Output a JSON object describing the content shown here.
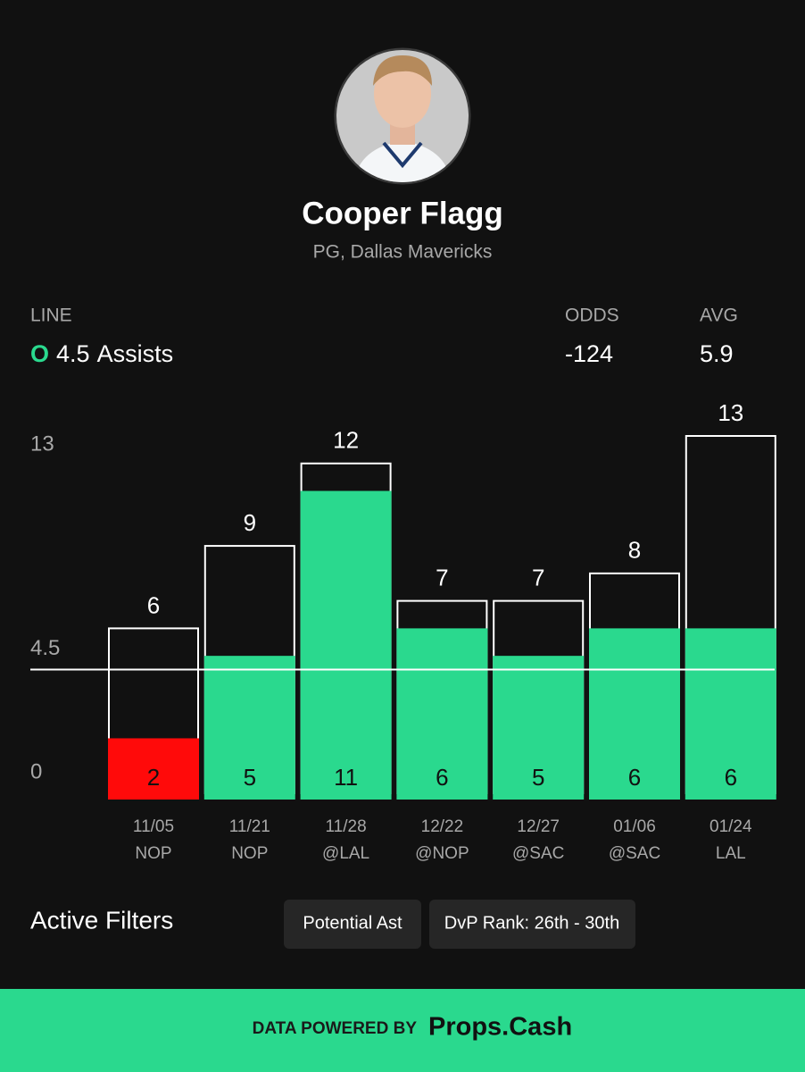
{
  "player": {
    "name": "Cooper Flagg",
    "subtitle": "PG, Dallas Mavericks"
  },
  "stats": {
    "line_label": "LINE",
    "side": "O",
    "line": 4.5,
    "stat": "Assists",
    "odds_label": "ODDS",
    "odds": -124,
    "avg_label": "AVG",
    "avg": 5.9
  },
  "chart_data": {
    "type": "bar",
    "categories": [
      "11/05",
      "11/21",
      "11/28",
      "12/22",
      "12/27",
      "01/06",
      "01/24"
    ],
    "opponents": [
      "NOP",
      "NOP",
      "@LAL",
      "@NOP",
      "@SAC",
      "@SAC",
      "LAL"
    ],
    "series": [
      {
        "values": [
          6,
          9,
          12,
          7,
          7,
          8,
          13
        ],
        "color": "#ffffff"
      },
      {
        "values": [
          2,
          5,
          11,
          6,
          5,
          6,
          6
        ],
        "color": "#2ad98e",
        "under_color": "#ff0a0a"
      }
    ],
    "ylim": [
      0,
      13
    ],
    "yticks": [
      0,
      4.5,
      13
    ]
  },
  "filters": {
    "title": "Active Filters",
    "chips": [
      "Potential Ast",
      "DvP Rank: 26th - 30th"
    ]
  },
  "footer": {
    "prefix": "DATA POWERED BY",
    "brand": "Props.Cash"
  }
}
